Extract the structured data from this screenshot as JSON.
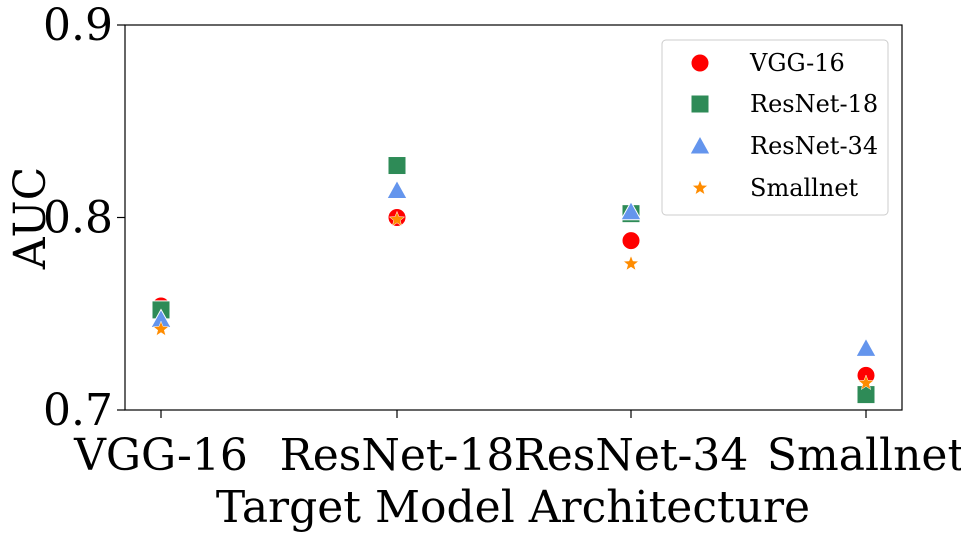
{
  "chart_data": {
    "type": "scatter",
    "title": "",
    "xlabel": "Target Model Architecture",
    "ylabel": "AUC",
    "categories": [
      "VGG-16",
      "ResNet-18",
      "ResNet-34",
      "Smallnet"
    ],
    "ylim": [
      0.7,
      0.9
    ],
    "yticks": [
      "0.7",
      "0.8",
      "0.9"
    ],
    "grid": false,
    "legend_position": "top-right",
    "series": [
      {
        "name": "VGG-16",
        "marker": "circle",
        "color": "#ff0000",
        "values": [
          0.754,
          0.8,
          0.788,
          0.718
        ]
      },
      {
        "name": "ResNet-18",
        "marker": "square",
        "color": "#2e8b57",
        "values": [
          0.752,
          0.827,
          0.802,
          0.708
        ]
      },
      {
        "name": "ResNet-34",
        "marker": "triangle",
        "color": "#6495ed",
        "values": [
          0.747,
          0.814,
          0.803,
          0.732
        ]
      },
      {
        "name": "Smallnet",
        "marker": "star",
        "color": "#ff8c00",
        "values": [
          0.742,
          0.799,
          0.776,
          0.714
        ]
      }
    ]
  }
}
